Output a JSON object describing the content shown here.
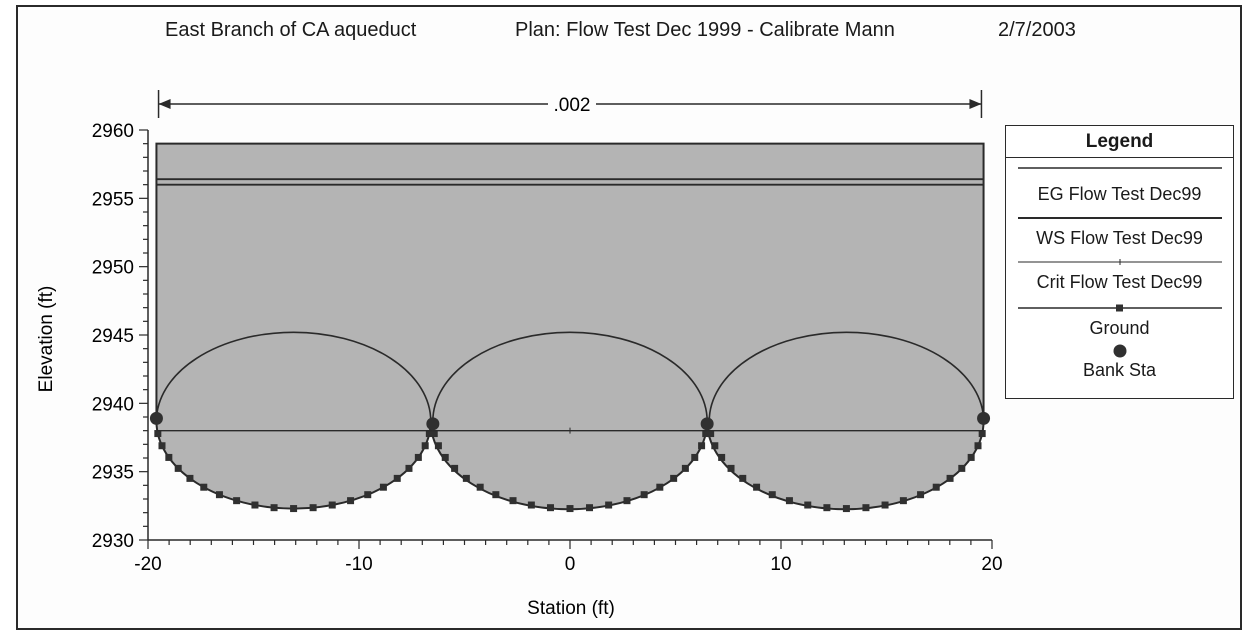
{
  "header": {
    "project": "East Branch of CA aqueduct",
    "plan": "Plan: Flow Test Dec 1999 - Calibrate Mann",
    "date": "2/7/2003"
  },
  "chart_data": {
    "type": "line",
    "xlabel": "Station (ft)",
    "ylabel": "Elevation (ft)",
    "xlim": [
      -20,
      20
    ],
    "ylim": [
      2930,
      2960
    ],
    "x_ticks": [
      -20,
      -10,
      0,
      10,
      20
    ],
    "y_ticks": [
      2930,
      2935,
      2940,
      2945,
      2950,
      2955,
      2960
    ],
    "grid": false,
    "legend_placement": "right",
    "annotation": {
      "label": ".002",
      "x_start": -19.5,
      "x_end": 19.5
    },
    "ground": {
      "name": "Ground",
      "arches": [
        {
          "center_x": -13.1,
          "half_width": 6.5,
          "top": 2945.2,
          "bottom": 2932.3,
          "spring": 2938.7
        },
        {
          "center_x": 0,
          "half_width": 6.5,
          "top": 2945.2,
          "bottom": 2932.3,
          "spring": 2938.7
        },
        {
          "center_x": 13.1,
          "half_width": 6.5,
          "top": 2945.2,
          "bottom": 2932.3,
          "spring": 2938.7
        }
      ],
      "walls": {
        "left_x": -19.6,
        "right_x": 19.6,
        "top": 2959
      }
    },
    "series": [
      {
        "name": "EG Flow Test Dec99",
        "y": 2956.4,
        "x": [
          -19.6,
          19.6
        ]
      },
      {
        "name": "WS Flow Test Dec99",
        "y": 2956.0,
        "x": [
          -19.6,
          19.6
        ]
      },
      {
        "name": "Crit Flow Test Dec99",
        "y": 2938.0,
        "x": [
          -19.6,
          19.6
        ]
      }
    ],
    "bank_stations": [
      {
        "x": -19.6,
        "y": 2938.9
      },
      {
        "x": -6.5,
        "y": 2938.5
      },
      {
        "x": 6.5,
        "y": 2938.5
      },
      {
        "x": 19.6,
        "y": 2938.9
      }
    ],
    "colors": {
      "fill": "#b4b4b4",
      "line": "#2a2a2a",
      "marker": "#303030"
    }
  },
  "legend": {
    "title": "Legend",
    "entries": [
      "EG Flow Test Dec99",
      "WS Flow Test Dec99",
      "Crit Flow Test Dec99",
      "Ground",
      "Bank Sta"
    ]
  }
}
